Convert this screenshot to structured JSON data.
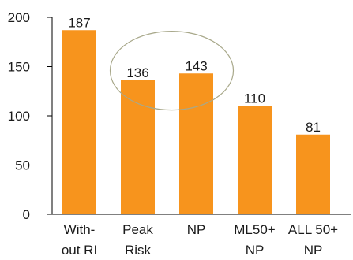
{
  "chart_data": {
    "type": "bar",
    "categories": [
      [
        "With-",
        "out RI"
      ],
      [
        "Peak",
        "Risk"
      ],
      [
        "NP"
      ],
      [
        "ML50+",
        "NP"
      ],
      [
        "ALL 50+",
        "NP"
      ]
    ],
    "values": [
      187,
      136,
      143,
      110,
      81
    ],
    "data_labels": [
      "187",
      "136",
      "143",
      "110",
      "81"
    ],
    "yticks": [
      0,
      50,
      100,
      150,
      200
    ],
    "ytick_labels": [
      "0",
      "50",
      "100",
      "150",
      "200"
    ],
    "ylim": [
      0,
      200
    ],
    "bar_color": "#F7941D",
    "highlight_ellipse": {
      "around_categories": [
        1,
        2
      ],
      "color": "#a8a88a"
    },
    "grid": false
  }
}
